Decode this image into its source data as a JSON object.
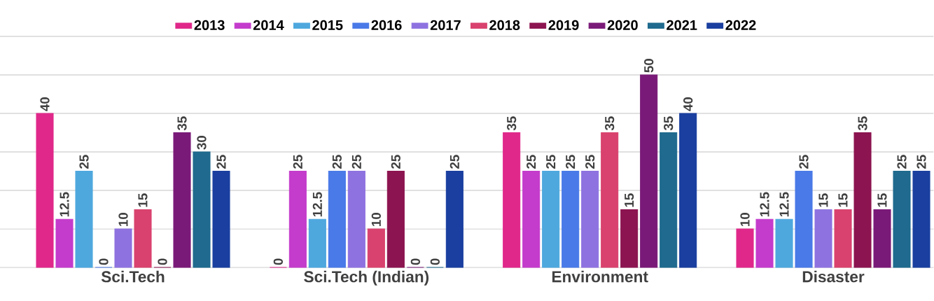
{
  "chart_data": {
    "type": "bar",
    "categories": [
      "Sci.Tech",
      "Sci.Tech (Indian)",
      "Environment",
      "Disaster"
    ],
    "series": [
      {
        "name": "2013",
        "color": "#e0288a",
        "values": [
          40,
          0,
          35,
          10
        ]
      },
      {
        "name": "2014",
        "color": "#c43ccc",
        "values": [
          12.5,
          25,
          25,
          12.5
        ]
      },
      {
        "name": "2015",
        "color": "#4ea8de",
        "values": [
          25,
          12.5,
          25,
          12.5
        ]
      },
      {
        "name": "2016",
        "color": "#4a7ae8",
        "values": [
          0,
          25,
          25,
          25
        ]
      },
      {
        "name": "2017",
        "color": "#8e72e0",
        "values": [
          10,
          25,
          25,
          15
        ]
      },
      {
        "name": "2018",
        "color": "#d9426e",
        "values": [
          15,
          10,
          35,
          15
        ]
      },
      {
        "name": "2019",
        "color": "#8c1450",
        "values": [
          0,
          25,
          15,
          35
        ]
      },
      {
        "name": "2020",
        "color": "#7a1a78",
        "values": [
          35,
          0,
          50,
          15
        ]
      },
      {
        "name": "2021",
        "color": "#1f6a8e",
        "values": [
          30,
          0,
          35,
          25
        ]
      },
      {
        "name": "2022",
        "color": "#1a3fa0",
        "values": [
          25,
          25,
          40,
          25
        ]
      }
    ],
    "ylim": [
      0,
      60
    ],
    "yticks": [
      {
        "value": 0,
        "label": null
      },
      {
        "value": 10,
        "label": null
      },
      {
        "value": 20,
        "label": null
      },
      {
        "value": 30,
        "label": null
      },
      {
        "value": 40,
        "label": null
      },
      {
        "value": 50,
        "label": null
      },
      {
        "value": 60,
        "label": null
      }
    ],
    "tick_labels": "x",
    "grid": "y",
    "legend": "top",
    "data_labels": true
  }
}
